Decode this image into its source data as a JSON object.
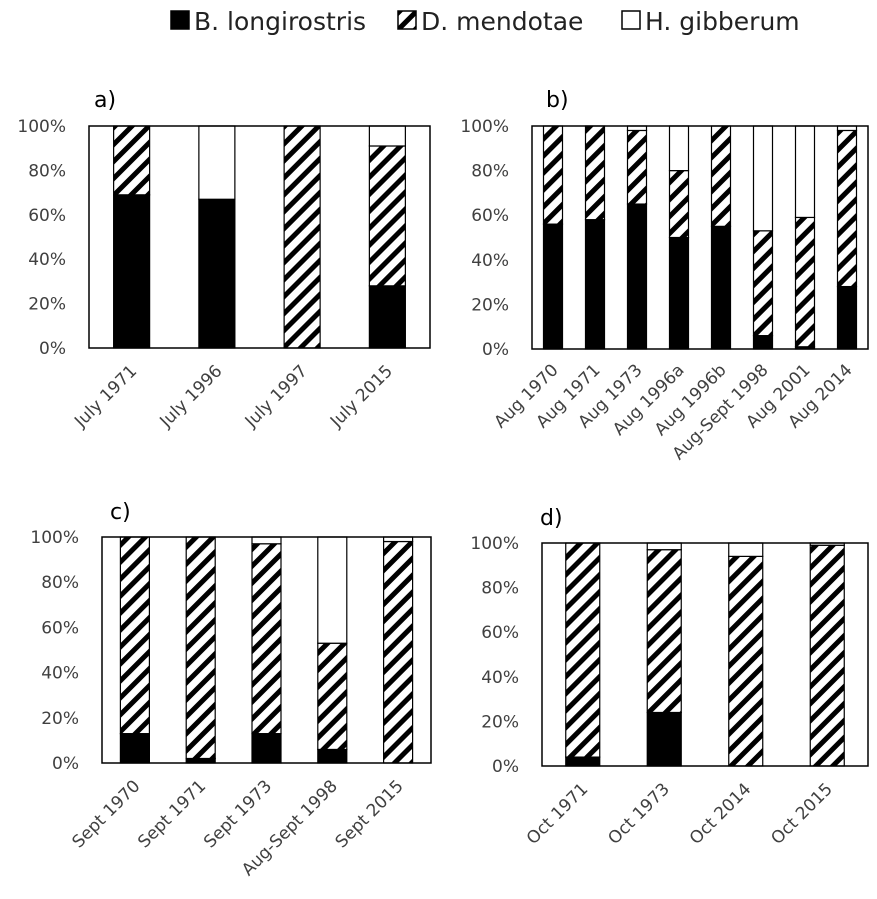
{
  "legend": [
    {
      "label": "B. longirostris",
      "swatch": "solid"
    },
    {
      "label": "D. mendotae",
      "swatch": "hatched"
    },
    {
      "label": "H. gibberum",
      "swatch": "empty"
    }
  ],
  "colors": {
    "bar_fill": "#000000",
    "bar_stroke": "#000000",
    "axis": "#000000",
    "text": "#404040",
    "background": "#ffffff"
  },
  "chart_data": [
    {
      "type": "bar",
      "stacked": true,
      "panel_label": "a)",
      "y_ticks": [
        "0%",
        "20%",
        "40%",
        "60%",
        "80%",
        "100%"
      ],
      "ylim": [
        0,
        100
      ],
      "categories": [
        "July 1971",
        "July 1996",
        "July 1997",
        "July 2015"
      ],
      "series": [
        {
          "name": "B. longirostris",
          "values": [
            69,
            67,
            0,
            28
          ]
        },
        {
          "name": "D. mendotae",
          "values": [
            31,
            0,
            100,
            63
          ]
        },
        {
          "name": "H. gibberum",
          "values": [
            0,
            33,
            0,
            9
          ]
        }
      ]
    },
    {
      "type": "bar",
      "stacked": true,
      "panel_label": "b)",
      "y_ticks": [
        "0%",
        "20%",
        "40%",
        "60%",
        "80%",
        "100%"
      ],
      "ylim": [
        0,
        100
      ],
      "categories": [
        "Aug 1970",
        "Aug 1971",
        "Aug 1973",
        "Aug 1996a",
        "Aug 1996b",
        "Aug-Sept 1998",
        "Aug 2001",
        "Aug 2014"
      ],
      "series": [
        {
          "name": "B. longirostris",
          "values": [
            56,
            58,
            65,
            50,
            55,
            6,
            1,
            28
          ]
        },
        {
          "name": "D. mendotae",
          "values": [
            44,
            42,
            33,
            30,
            45,
            47,
            58,
            70
          ]
        },
        {
          "name": "H. gibberum",
          "values": [
            0,
            0,
            2,
            20,
            0,
            47,
            41,
            2
          ]
        }
      ]
    },
    {
      "type": "bar",
      "stacked": true,
      "panel_label": "c)",
      "y_ticks": [
        "0%",
        "20%",
        "40%",
        "60%",
        "80%",
        "100%"
      ],
      "ylim": [
        0,
        100
      ],
      "categories": [
        "Sept 1970",
        "Sept 1971",
        "Sept 1973",
        "Aug-Sept 1998",
        "Sept 2015"
      ],
      "series": [
        {
          "name": "B. longirostris",
          "values": [
            13,
            2,
            13,
            6,
            0
          ]
        },
        {
          "name": "D. mendotae",
          "values": [
            87,
            98,
            84,
            47,
            98
          ]
        },
        {
          "name": "H. gibberum",
          "values": [
            0,
            0,
            3,
            47,
            2
          ]
        }
      ]
    },
    {
      "type": "bar",
      "stacked": true,
      "panel_label": "d)",
      "y_ticks": [
        "0%",
        "20%",
        "40%",
        "60%",
        "80%",
        "100%"
      ],
      "ylim": [
        0,
        100
      ],
      "categories": [
        "Oct 1971",
        "Oct 1973",
        "Oct 2014",
        "Oct 2015"
      ],
      "series": [
        {
          "name": "B. longirostris",
          "values": [
            4,
            24,
            0,
            0
          ]
        },
        {
          "name": "D. mendotae",
          "values": [
            96,
            73,
            94,
            99
          ]
        },
        {
          "name": "H. gibberum",
          "values": [
            0,
            3,
            6,
            1
          ]
        }
      ]
    }
  ]
}
